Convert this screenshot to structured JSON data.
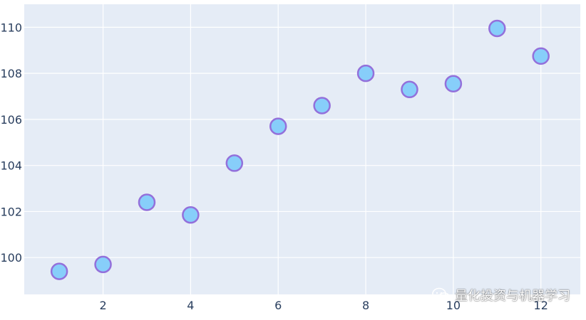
{
  "chart_data": {
    "type": "scatter",
    "title": "",
    "xlabel": "",
    "ylabel": "",
    "x": [
      1,
      2,
      3,
      4,
      5,
      6,
      7,
      8,
      9,
      10,
      11,
      12
    ],
    "y": [
      99.4,
      99.7,
      102.4,
      101.85,
      104.1,
      105.7,
      106.6,
      108.0,
      107.3,
      107.55,
      109.95,
      108.75
    ],
    "xlim": [
      0.2,
      12.9
    ],
    "ylim": [
      98.4,
      111.0
    ],
    "xticks": [
      2,
      4,
      6,
      8,
      10,
      12
    ],
    "yticks": [
      100,
      102,
      104,
      106,
      108,
      110
    ],
    "grid": true,
    "marker": {
      "fill": "#87cefa",
      "line": "#9370db"
    },
    "colors": {
      "plot_background": "#e5ecf6",
      "grid": "#ffffff",
      "tick_text": "#2a3f5f"
    }
  },
  "watermark": {
    "icon": "wechat-icon",
    "text": "量化投资与机器学习"
  }
}
